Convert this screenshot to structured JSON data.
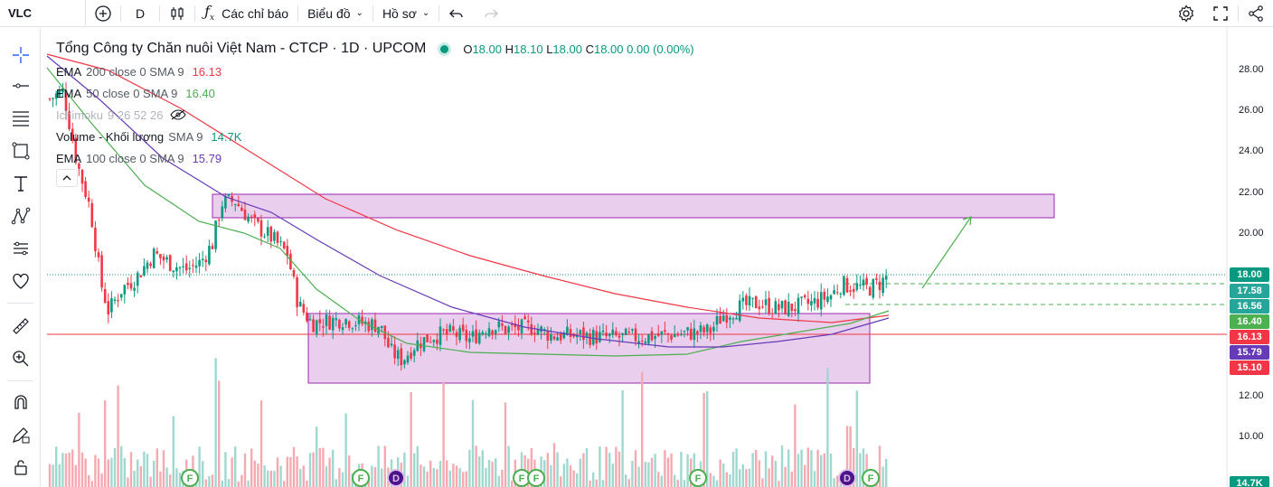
{
  "toolbar": {
    "symbol": "VLC",
    "interval": "D",
    "indicators_label": "Các chỉ báo",
    "chart_label": "Biểu đồ",
    "profile_label": "Hồ sơ"
  },
  "legend": {
    "title": "Tổng Công ty Chăn nuôi Việt Nam - CTCP · 1D · UPCOM",
    "ohlc": {
      "o_label": "O",
      "o": "18.00",
      "h_label": "H",
      "h": "18.10",
      "l_label": "L",
      "l": "18.00",
      "c_label": "C",
      "c": "18.00",
      "change": "0.00 (0.00%)"
    },
    "indicators": [
      {
        "name": "EMA",
        "params": "200 close 0 SMA 9",
        "value": "16.13",
        "color": "#f23645"
      },
      {
        "name": "EMA",
        "params": "50 close 0 SMA 9",
        "value": "16.40",
        "color": "#4caf50"
      },
      {
        "name": "Ichimoku",
        "params": "9 26 52 26",
        "value": "",
        "color": "#b2b5be"
      },
      {
        "name": "Volume - Khối lượng",
        "params": "SMA 9",
        "value": "14.7K",
        "color": "#089981"
      },
      {
        "name": "EMA",
        "params": "100 close 0 SMA 9",
        "value": "15.79",
        "color": "#673ab7"
      }
    ]
  },
  "price_axis": [
    "28.00",
    "26.00",
    "24.00",
    "22.00",
    "20.00",
    "12.00",
    "10.00"
  ],
  "price_tags": [
    {
      "value": "18.00",
      "color": "#089981"
    },
    {
      "value": "17.58",
      "color": "#26a69a"
    },
    {
      "value": "16.56",
      "color": "#26a69a"
    },
    {
      "value": "16.40",
      "color": "#4caf50"
    },
    {
      "value": "16.13",
      "color": "#f23645"
    },
    {
      "value": "15.79",
      "color": "#673ab7"
    },
    {
      "value": "15.10",
      "color": "#f23645"
    },
    {
      "value": "14.7K",
      "color": "#089981"
    }
  ],
  "events": [
    "F",
    "F",
    "D",
    "F",
    "F",
    "F",
    "D",
    "F"
  ],
  "colors": {
    "up": "#089981",
    "down": "#f23645",
    "zone": "#e1bee7",
    "zone_border": "#9c27b0"
  }
}
